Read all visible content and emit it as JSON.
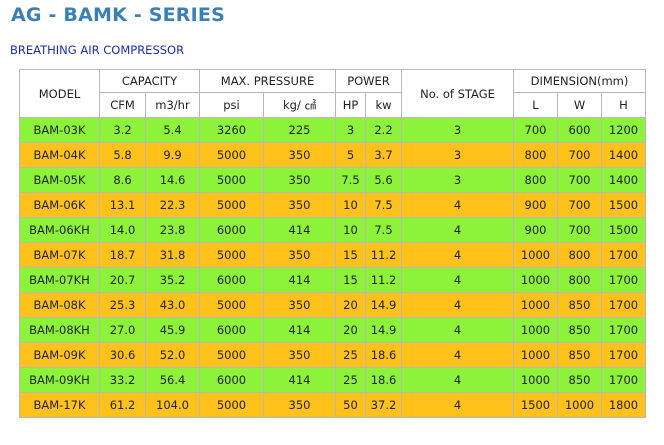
{
  "page": {
    "title": "AG - BAMK - SERIES",
    "subtitle": "BREATHING AIR COMPRESSOR"
  },
  "colors": {
    "green_row": "#8df23a",
    "orange_row": "#ffc21a",
    "title": "#3a7fb6",
    "subtitle": "#1b2fae"
  },
  "table": {
    "headers": {
      "model": "MODEL",
      "capacity": "CAPACITY",
      "max_pressure": "MAX. PRESSURE",
      "power": "POWER",
      "stage": "No. of STAGE",
      "dimension": "DIMENSION(mm)",
      "cfm": "CFM",
      "m3hr": "m3/hr",
      "psi": "psi",
      "kgcm": "kg/ ㎠",
      "hp": "HP",
      "kw": "kw",
      "l": "L",
      "w": "W",
      "h": "H"
    },
    "rows": [
      {
        "model": "BAM-03K",
        "cfm": "3.2",
        "m3hr": "5.4",
        "psi": "3260",
        "kg": "225",
        "hp": "3",
        "kw": "2.2",
        "stage": "3",
        "l": "700",
        "w": "600",
        "h": "1200",
        "color": "green"
      },
      {
        "model": "BAM-04K",
        "cfm": "5.8",
        "m3hr": "9.9",
        "psi": "5000",
        "kg": "350",
        "hp": "5",
        "kw": "3.7",
        "stage": "3",
        "l": "800",
        "w": "700",
        "h": "1400",
        "color": "orange"
      },
      {
        "model": "BAM-05K",
        "cfm": "8.6",
        "m3hr": "14.6",
        "psi": "5000",
        "kg": "350",
        "hp": "7.5",
        "kw": "5.6",
        "stage": "3",
        "l": "800",
        "w": "700",
        "h": "1400",
        "color": "green"
      },
      {
        "model": "BAM-06K",
        "cfm": "13.1",
        "m3hr": "22.3",
        "psi": "5000",
        "kg": "350",
        "hp": "10",
        "kw": "7.5",
        "stage": "4",
        "l": "900",
        "w": "700",
        "h": "1500",
        "color": "orange"
      },
      {
        "model": "BAM-06KH",
        "cfm": "14.0",
        "m3hr": "23.8",
        "psi": "6000",
        "kg": "414",
        "hp": "10",
        "kw": "7.5",
        "stage": "4",
        "l": "900",
        "w": "700",
        "h": "1500",
        "color": "green"
      },
      {
        "model": "BAM-07K",
        "cfm": "18.7",
        "m3hr": "31.8",
        "psi": "5000",
        "kg": "350",
        "hp": "15",
        "kw": "11.2",
        "stage": "4",
        "l": "1000",
        "w": "800",
        "h": "1700",
        "color": "orange"
      },
      {
        "model": "BAM-07KH",
        "cfm": "20.7",
        "m3hr": "35.2",
        "psi": "6000",
        "kg": "414",
        "hp": "15",
        "kw": "11.2",
        "stage": "4",
        "l": "1000",
        "w": "800",
        "h": "1700",
        "color": "green"
      },
      {
        "model": "BAM-08K",
        "cfm": "25.3",
        "m3hr": "43.0",
        "psi": "5000",
        "kg": "350",
        "hp": "20",
        "kw": "14.9",
        "stage": "4",
        "l": "1000",
        "w": "850",
        "h": "1700",
        "color": "orange"
      },
      {
        "model": "BAM-08KH",
        "cfm": "27.0",
        "m3hr": "45.9",
        "psi": "6000",
        "kg": "414",
        "hp": "20",
        "kw": "14.9",
        "stage": "4",
        "l": "1000",
        "w": "850",
        "h": "1700",
        "color": "green"
      },
      {
        "model": "BAM-09K",
        "cfm": "30.6",
        "m3hr": "52.0",
        "psi": "5000",
        "kg": "350",
        "hp": "25",
        "kw": "18.6",
        "stage": "4",
        "l": "1000",
        "w": "850",
        "h": "1700",
        "color": "orange"
      },
      {
        "model": "BAM-09KH",
        "cfm": "33.2",
        "m3hr": "56.4",
        "psi": "6000",
        "kg": "414",
        "hp": "25",
        "kw": "18.6",
        "stage": "4",
        "l": "1000",
        "w": "850",
        "h": "1700",
        "color": "green"
      },
      {
        "model": "BAM-17K",
        "cfm": "61.2",
        "m3hr": "104.0",
        "psi": "5000",
        "kg": "350",
        "hp": "50",
        "kw": "37.2",
        "stage": "4",
        "l": "1500",
        "w": "1000",
        "h": "1800",
        "color": "orange"
      }
    ]
  }
}
